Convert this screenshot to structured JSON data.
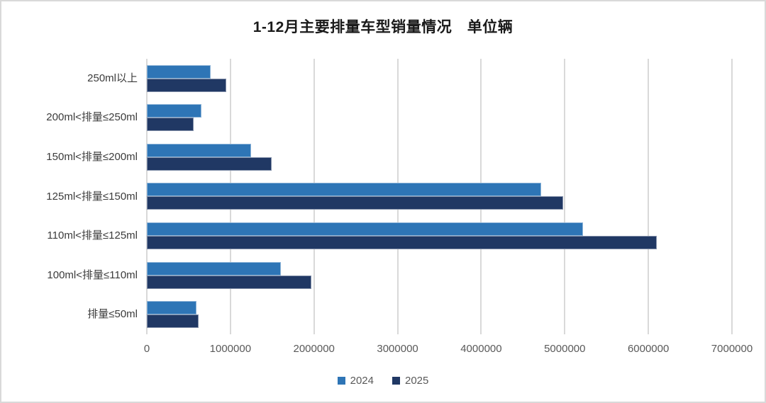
{
  "chart_data": {
    "type": "bar",
    "orientation": "horizontal",
    "title": "1-12月主要排量车型销量情况　单位辆",
    "categories": [
      "250ml以上",
      "200ml<排量≤250ml",
      "150ml<排量≤200ml",
      "125ml<排量≤150ml",
      "110ml<排量≤125ml",
      "100ml<排量≤110ml",
      "排量≤50ml"
    ],
    "series": [
      {
        "name": "2024",
        "color": "#2E75B6",
        "values": [
          760000,
          650000,
          1250000,
          4720000,
          5220000,
          1600000,
          590000
        ]
      },
      {
        "name": "2025",
        "color": "#203864",
        "values": [
          950000,
          560000,
          1490000,
          4980000,
          6100000,
          1970000,
          620000
        ]
      }
    ],
    "xlim": [
      0,
      7000000
    ],
    "x_ticks": [
      0,
      1000000,
      2000000,
      3000000,
      4000000,
      5000000,
      6000000,
      7000000
    ],
    "grid": "vertical-gridlines",
    "legend_position": "bottom"
  },
  "colors": {
    "series_2024": "#2E75B6",
    "series_2025": "#203864",
    "gridline": "#D9D9D9",
    "axis_text": "#595959",
    "category_text": "#3b3b3b",
    "border": "#D9D9D9"
  }
}
